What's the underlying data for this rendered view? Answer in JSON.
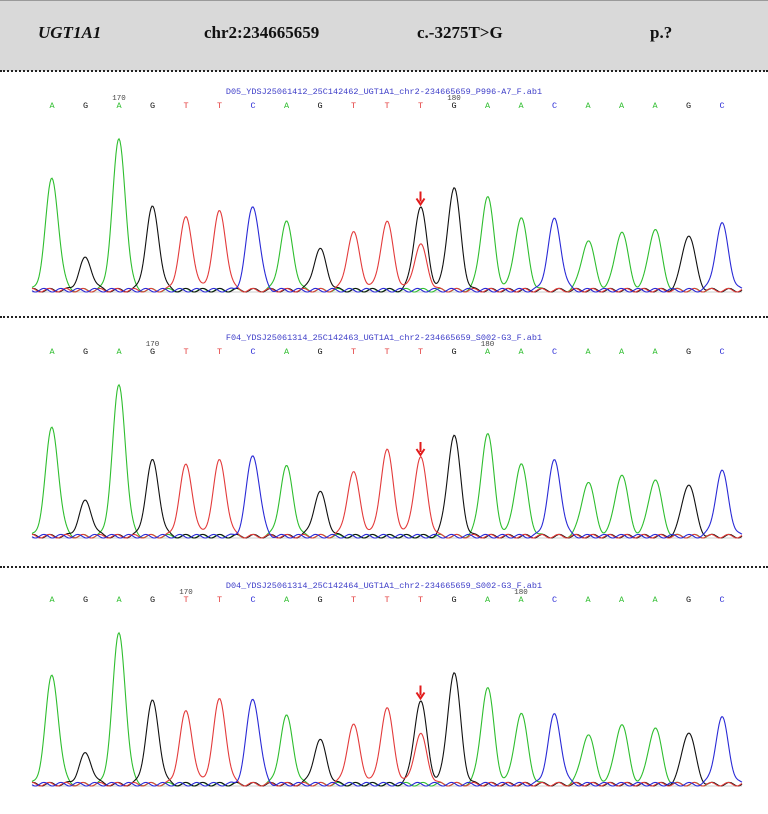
{
  "header": {
    "gene": "UGT1A1",
    "position": "chr2:234665659",
    "cdna": "c.-3275T>G",
    "protein": "p.?"
  },
  "colors": {
    "A": "#2fbe2f",
    "G": "#111111",
    "T": "#e33b3b",
    "C": "#2a2ad6",
    "marker": "#e21b1b",
    "header_bg": "#d9d9d9"
  },
  "chart_data": [
    {
      "type": "line",
      "title": "D05_YDSJ25061412_25C142462_UGT1A1_chr2-234665659_P996-A7_F.ab1",
      "bases": [
        "A",
        "G",
        "A",
        "G",
        "T",
        "T",
        "C",
        "A",
        "G",
        "T",
        "T",
        "T",
        "G",
        "A",
        "A",
        "C",
        "A",
        "A",
        "A",
        "G",
        "C"
      ],
      "position_labels": [
        {
          "label": "170",
          "index": 2
        },
        {
          "label": "180",
          "index": 12
        }
      ],
      "variant_index": 11,
      "series": [
        {
          "base": "A",
          "peaks": [
            {
              "i": 0,
              "h": 0.74
            },
            {
              "i": 2,
              "h": 1.0
            },
            {
              "i": 7,
              "h": 0.45
            },
            {
              "i": 13,
              "h": 0.62
            },
            {
              "i": 14,
              "h": 0.48
            },
            {
              "i": 16,
              "h": 0.33
            },
            {
              "i": 17,
              "h": 0.39
            },
            {
              "i": 18,
              "h": 0.41
            }
          ]
        },
        {
          "base": "G",
          "peaks": [
            {
              "i": 1,
              "h": 0.21
            },
            {
              "i": 3,
              "h": 0.55
            },
            {
              "i": 8,
              "h": 0.27
            },
            {
              "i": 11,
              "h": 0.55
            },
            {
              "i": 12,
              "h": 0.68
            },
            {
              "i": 19,
              "h": 0.37
            }
          ]
        },
        {
          "base": "T",
          "peaks": [
            {
              "i": 4,
              "h": 0.48
            },
            {
              "i": 5,
              "h": 0.52
            },
            {
              "i": 9,
              "h": 0.38
            },
            {
              "i": 10,
              "h": 0.45
            },
            {
              "i": 11,
              "h": 0.3
            }
          ]
        },
        {
          "base": "C",
          "peaks": [
            {
              "i": 6,
              "h": 0.56
            },
            {
              "i": 15,
              "h": 0.47
            },
            {
              "i": 20,
              "h": 0.44
            }
          ]
        }
      ]
    },
    {
      "type": "line",
      "title": "F04_YDSJ25061314_25C142463_UGT1A1_chr2-234665659_S002-G3_F.ab1",
      "bases": [
        "A",
        "G",
        "A",
        "G",
        "T",
        "T",
        "C",
        "A",
        "G",
        "T",
        "T",
        "T",
        "G",
        "A",
        "A",
        "C",
        "A",
        "A",
        "A",
        "G",
        "C"
      ],
      "position_labels": [
        {
          "label": "170",
          "index": 3
        },
        {
          "label": "180",
          "index": 13
        }
      ],
      "variant_index": 11,
      "series": [
        {
          "base": "A",
          "peaks": [
            {
              "i": 0,
              "h": 0.72
            },
            {
              "i": 2,
              "h": 1.0
            },
            {
              "i": 7,
              "h": 0.46
            },
            {
              "i": 13,
              "h": 0.68
            },
            {
              "i": 14,
              "h": 0.48
            },
            {
              "i": 16,
              "h": 0.36
            },
            {
              "i": 17,
              "h": 0.41
            },
            {
              "i": 18,
              "h": 0.38
            }
          ]
        },
        {
          "base": "G",
          "peaks": [
            {
              "i": 1,
              "h": 0.23
            },
            {
              "i": 3,
              "h": 0.5
            },
            {
              "i": 8,
              "h": 0.29
            },
            {
              "i": 12,
              "h": 0.67
            },
            {
              "i": 19,
              "h": 0.35
            }
          ]
        },
        {
          "base": "T",
          "peaks": [
            {
              "i": 4,
              "h": 0.47
            },
            {
              "i": 5,
              "h": 0.5
            },
            {
              "i": 9,
              "h": 0.42
            },
            {
              "i": 10,
              "h": 0.57
            },
            {
              "i": 11,
              "h": 0.52
            }
          ]
        },
        {
          "base": "C",
          "peaks": [
            {
              "i": 6,
              "h": 0.54
            },
            {
              "i": 15,
              "h": 0.5
            },
            {
              "i": 20,
              "h": 0.43
            }
          ]
        }
      ]
    },
    {
      "type": "line",
      "title": "D04_YDSJ25061314_25C142464_UGT1A1_chr2-234665659_S002-G3_F.ab1",
      "bases": [
        "A",
        "G",
        "A",
        "G",
        "T",
        "T",
        "C",
        "A",
        "G",
        "T",
        "T",
        "T",
        "G",
        "A",
        "A",
        "C",
        "A",
        "A",
        "A",
        "G",
        "C"
      ],
      "position_labels": [
        {
          "label": "170",
          "index": 4
        },
        {
          "label": "180",
          "index": 14
        }
      ],
      "variant_index": 11,
      "series": [
        {
          "base": "A",
          "peaks": [
            {
              "i": 0,
              "h": 0.72
            },
            {
              "i": 2,
              "h": 1.0
            },
            {
              "i": 7,
              "h": 0.45
            },
            {
              "i": 13,
              "h": 0.64
            },
            {
              "i": 14,
              "h": 0.47
            },
            {
              "i": 16,
              "h": 0.33
            },
            {
              "i": 17,
              "h": 0.4
            },
            {
              "i": 18,
              "h": 0.38
            }
          ]
        },
        {
          "base": "G",
          "peaks": [
            {
              "i": 1,
              "h": 0.2
            },
            {
              "i": 3,
              "h": 0.55
            },
            {
              "i": 8,
              "h": 0.29
            },
            {
              "i": 11,
              "h": 0.55
            },
            {
              "i": 12,
              "h": 0.74
            },
            {
              "i": 19,
              "h": 0.35
            }
          ]
        },
        {
          "base": "T",
          "peaks": [
            {
              "i": 4,
              "h": 0.48
            },
            {
              "i": 5,
              "h": 0.56
            },
            {
              "i": 9,
              "h": 0.39
            },
            {
              "i": 10,
              "h": 0.5
            },
            {
              "i": 11,
              "h": 0.33
            }
          ]
        },
        {
          "base": "C",
          "peaks": [
            {
              "i": 6,
              "h": 0.57
            },
            {
              "i": 15,
              "h": 0.46
            },
            {
              "i": 20,
              "h": 0.44
            }
          ]
        }
      ]
    }
  ]
}
